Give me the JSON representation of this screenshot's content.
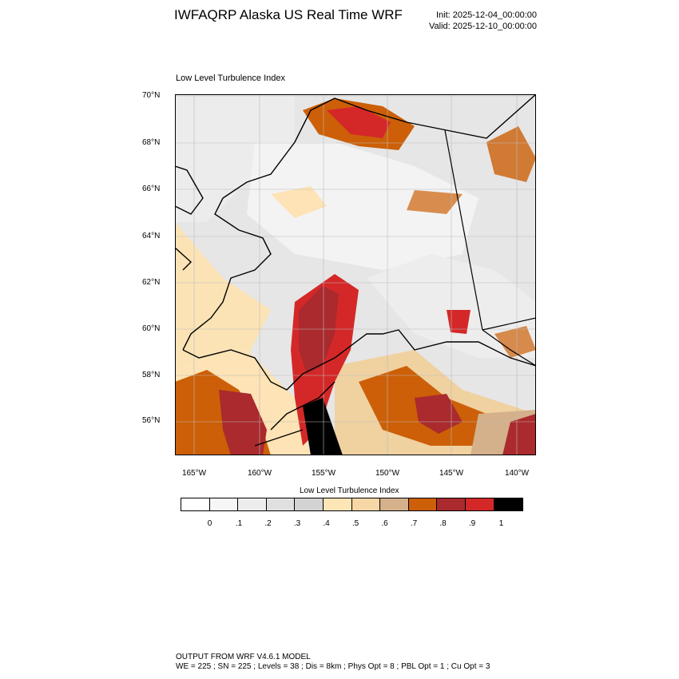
{
  "header": {
    "title": "IWFAQRP Alaska US Real Time WRF",
    "init": "Init: 2025-12-04_00:00:00",
    "valid": "Valid: 2025-12-10_00:00:00"
  },
  "map": {
    "subtitle": "Low Level Turbulence Index",
    "lat_ticks": [
      "70°N",
      "68°N",
      "66°N",
      "64°N",
      "62°N",
      "60°N",
      "58°N",
      "56°N"
    ],
    "lon_ticks": [
      "165°W",
      "160°W",
      "155°W",
      "150°W",
      "145°W",
      "140°W"
    ],
    "colors": {
      "frame": "#000000",
      "coast": "#000000",
      "gridline": "#bbbbbb"
    }
  },
  "colorbar": {
    "title": "Low Level Turbulence Index",
    "levels": [
      "0",
      ".1",
      ".2",
      ".3",
      ".4",
      ".5",
      ".6",
      ".7",
      ".8",
      ".9",
      "1"
    ],
    "colors": [
      "#ffffff",
      "#f6f6f6",
      "#ededed",
      "#e0e0e0",
      "#d3d3d3",
      "#fde5b6",
      "#f7d7a6",
      "#d4b08b",
      "#cc5f07",
      "#aa2a2d",
      "#d42828",
      "#000000"
    ]
  },
  "footer": {
    "line1": "OUTPUT FROM WRF V4.6.1 MODEL",
    "line2": "WE = 225 ; SN = 225 ; Levels = 38 ; Dis = 8km ; Phys Opt = 8 ; PBL Opt = 1 ; Cu Opt = 3"
  }
}
